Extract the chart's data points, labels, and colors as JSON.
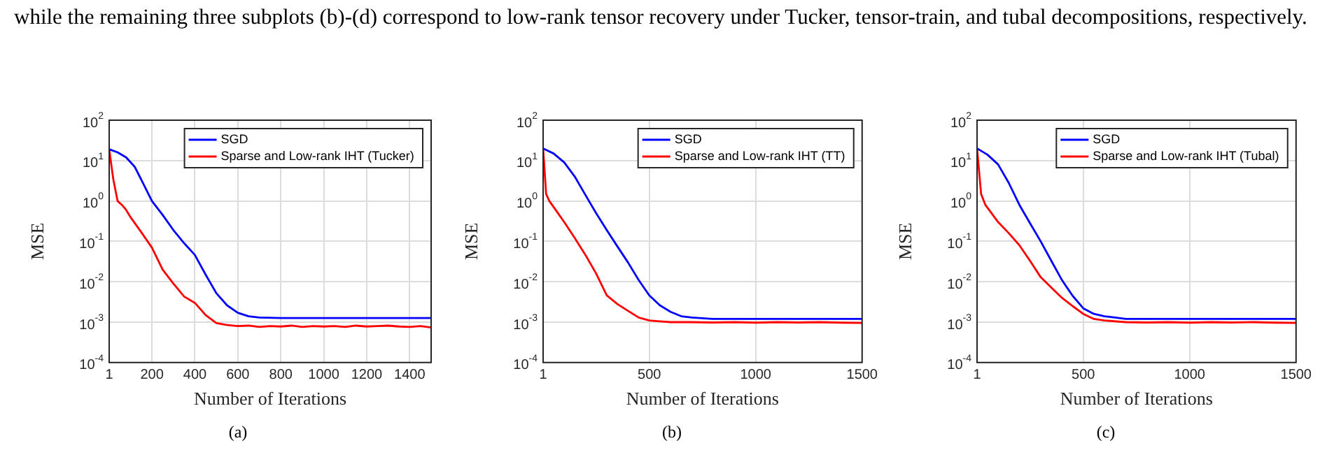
{
  "chart_data": [
    {
      "type": "line",
      "xlabel": "Number of Iterations",
      "ylabel": "MSE",
      "annotations": [
        "while the remaining three subplots (b)-(d) correspond to low-rank tensor recovery under Tucker, tensor-train, and tubal decompositions, respectively.",
        "(a)"
      ],
      "log": "y",
      "grid": true,
      "legend": "top right",
      "xlim": [
        1,
        1500
      ],
      "xticks": [
        1,
        200,
        400,
        600,
        800,
        1000,
        1200,
        1400
      ],
      "ylim": [
        0.0001,
        100
      ],
      "yticks": [
        {
          "value": 0.0001,
          "label": "10$^{-4}$"
        },
        {
          "value": 0.001,
          "label": "10$^{-3}$"
        },
        {
          "value": 0.01,
          "label": "10$^{-2}$"
        },
        {
          "value": 0.1,
          "label": "10$^{-1}$"
        },
        {
          "value": 1,
          "label": "10$^{0}$"
        },
        {
          "value": 10,
          "label": "10$^{1}$"
        },
        {
          "value": 100,
          "label": "10$^{2}$"
        }
      ],
      "series": [
        {
          "name": "SGD",
          "color": "#0000ff",
          "x": [
            1,
            40,
            80,
            120,
            150,
            200,
            250,
            300,
            350,
            400,
            450,
            500,
            550,
            600,
            650,
            700,
            800,
            900,
            1000,
            1100,
            1200,
            1300,
            1400,
            1500
          ],
          "values": [
            19,
            16,
            12,
            7,
            3.4,
            1,
            0.45,
            0.19,
            0.09,
            0.046,
            0.015,
            0.0052,
            0.0026,
            0.0017,
            0.0014,
            0.0013,
            0.00126,
            0.00126,
            0.00126,
            0.00126,
            0.00126,
            0.00126,
            0.00126,
            0.00126
          ]
        },
        {
          "name": "Sparse and Low-rank IHT (Tucker)",
          "color": "#ff0000",
          "x": [
            1,
            20,
            40,
            60,
            80,
            100,
            150,
            200,
            250,
            300,
            350,
            400,
            450,
            500,
            550,
            600,
            650,
            700,
            750,
            800,
            850,
            900,
            950,
            1000,
            1050,
            1100,
            1150,
            1200,
            1250,
            1300,
            1350,
            1400,
            1450,
            1500
          ],
          "values": [
            19,
            3.5,
            1,
            0.8,
            0.6,
            0.4,
            0.17,
            0.07,
            0.02,
            0.009,
            0.0043,
            0.003,
            0.0015,
            0.00095,
            0.00085,
            0.0008,
            0.00082,
            0.00076,
            0.0008,
            0.00078,
            0.00082,
            0.00076,
            0.0008,
            0.00078,
            0.0008,
            0.00076,
            0.00082,
            0.00078,
            0.0008,
            0.00082,
            0.00078,
            0.00076,
            0.0008,
            0.00074
          ]
        }
      ]
    },
    {
      "type": "line",
      "xlabel": "Number of Iterations",
      "ylabel": "MSE",
      "annotations": [
        "(b)"
      ],
      "log": "y",
      "grid": true,
      "legend": "top right",
      "xlim": [
        1,
        1500
      ],
      "xticks": [
        1,
        500,
        1000,
        1500
      ],
      "ylim": [
        0.0001,
        100
      ],
      "yticks": [
        {
          "value": 0.0001,
          "label": "10$^{-4}$"
        },
        {
          "value": 0.001,
          "label": "10$^{-3}$"
        },
        {
          "value": 0.01,
          "label": "10$^{-2}$"
        },
        {
          "value": 0.1,
          "label": "10$^{-1}$"
        },
        {
          "value": 1,
          "label": "10$^{0}$"
        },
        {
          "value": 10,
          "label": "10$^{1}$"
        },
        {
          "value": 100,
          "label": "10$^{2}$"
        }
      ],
      "series": [
        {
          "name": "SGD",
          "color": "#0000ff",
          "x": [
            1,
            50,
            100,
            150,
            200,
            250,
            300,
            350,
            400,
            450,
            500,
            550,
            600,
            650,
            700,
            800,
            900,
            1000,
            1100,
            1200,
            1300,
            1400,
            1500
          ],
          "values": [
            20,
            15,
            9,
            4,
            1.4,
            0.5,
            0.19,
            0.075,
            0.03,
            0.011,
            0.0046,
            0.0026,
            0.0018,
            0.0014,
            0.0013,
            0.0012,
            0.0012,
            0.0012,
            0.0012,
            0.0012,
            0.0012,
            0.0012,
            0.0012
          ]
        },
        {
          "name": "Sparse and Low-rank IHT (TT)",
          "color": "#ff0000",
          "x": [
            1,
            15,
            30,
            60,
            100,
            150,
            200,
            250,
            300,
            350,
            400,
            450,
            500,
            550,
            600,
            700,
            800,
            900,
            1000,
            1100,
            1200,
            1300,
            1400,
            1500
          ],
          "values": [
            20,
            1.5,
            1,
            0.6,
            0.3,
            0.12,
            0.046,
            0.016,
            0.0046,
            0.0028,
            0.0019,
            0.0013,
            0.0011,
            0.00105,
            0.001,
            0.001,
            0.00098,
            0.001,
            0.00097,
            0.001,
            0.00098,
            0.001,
            0.00097,
            0.00096
          ]
        }
      ]
    },
    {
      "type": "line",
      "xlabel": "Number of Iterations",
      "ylabel": "MSE",
      "annotations": [
        "(c)"
      ],
      "log": "y",
      "grid": true,
      "legend": "top right",
      "xlim": [
        1,
        1500
      ],
      "xticks": [
        1,
        500,
        1000,
        1500
      ],
      "ylim": [
        0.0001,
        100
      ],
      "yticks": [
        {
          "value": 0.0001,
          "label": "10$^{-4}$"
        },
        {
          "value": 0.001,
          "label": "10$^{-3}$"
        },
        {
          "value": 0.01,
          "label": "10$^{-2}$"
        },
        {
          "value": 0.1,
          "label": "10$^{-1}$"
        },
        {
          "value": 1,
          "label": "10$^{0}$"
        },
        {
          "value": 10,
          "label": "10$^{1}$"
        },
        {
          "value": 100,
          "label": "10$^{2}$"
        }
      ],
      "series": [
        {
          "name": "SGD",
          "color": "#0000ff",
          "x": [
            1,
            50,
            100,
            150,
            200,
            250,
            300,
            350,
            400,
            450,
            500,
            550,
            600,
            650,
            700,
            800,
            900,
            1000,
            1100,
            1200,
            1300,
            1400,
            1500
          ],
          "values": [
            20,
            14,
            8,
            2.8,
            0.8,
            0.28,
            0.1,
            0.033,
            0.011,
            0.0045,
            0.0022,
            0.0016,
            0.0014,
            0.0013,
            0.0012,
            0.0012,
            0.0012,
            0.0012,
            0.0012,
            0.0012,
            0.0012,
            0.0012,
            0.0012
          ]
        },
        {
          "name": "Sparse and Low-rank IHT (Tubal)",
          "color": "#ff0000",
          "x": [
            1,
            20,
            40,
            100,
            150,
            200,
            250,
            300,
            350,
            400,
            450,
            500,
            550,
            600,
            700,
            800,
            900,
            1000,
            1100,
            1200,
            1300,
            1400,
            1500
          ],
          "values": [
            20,
            1.5,
            0.8,
            0.3,
            0.16,
            0.08,
            0.033,
            0.013,
            0.0072,
            0.004,
            0.0025,
            0.0016,
            0.0012,
            0.0011,
            0.001,
            0.00098,
            0.001,
            0.00097,
            0.001,
            0.00098,
            0.001,
            0.00097,
            0.00096
          ]
        }
      ]
    }
  ]
}
